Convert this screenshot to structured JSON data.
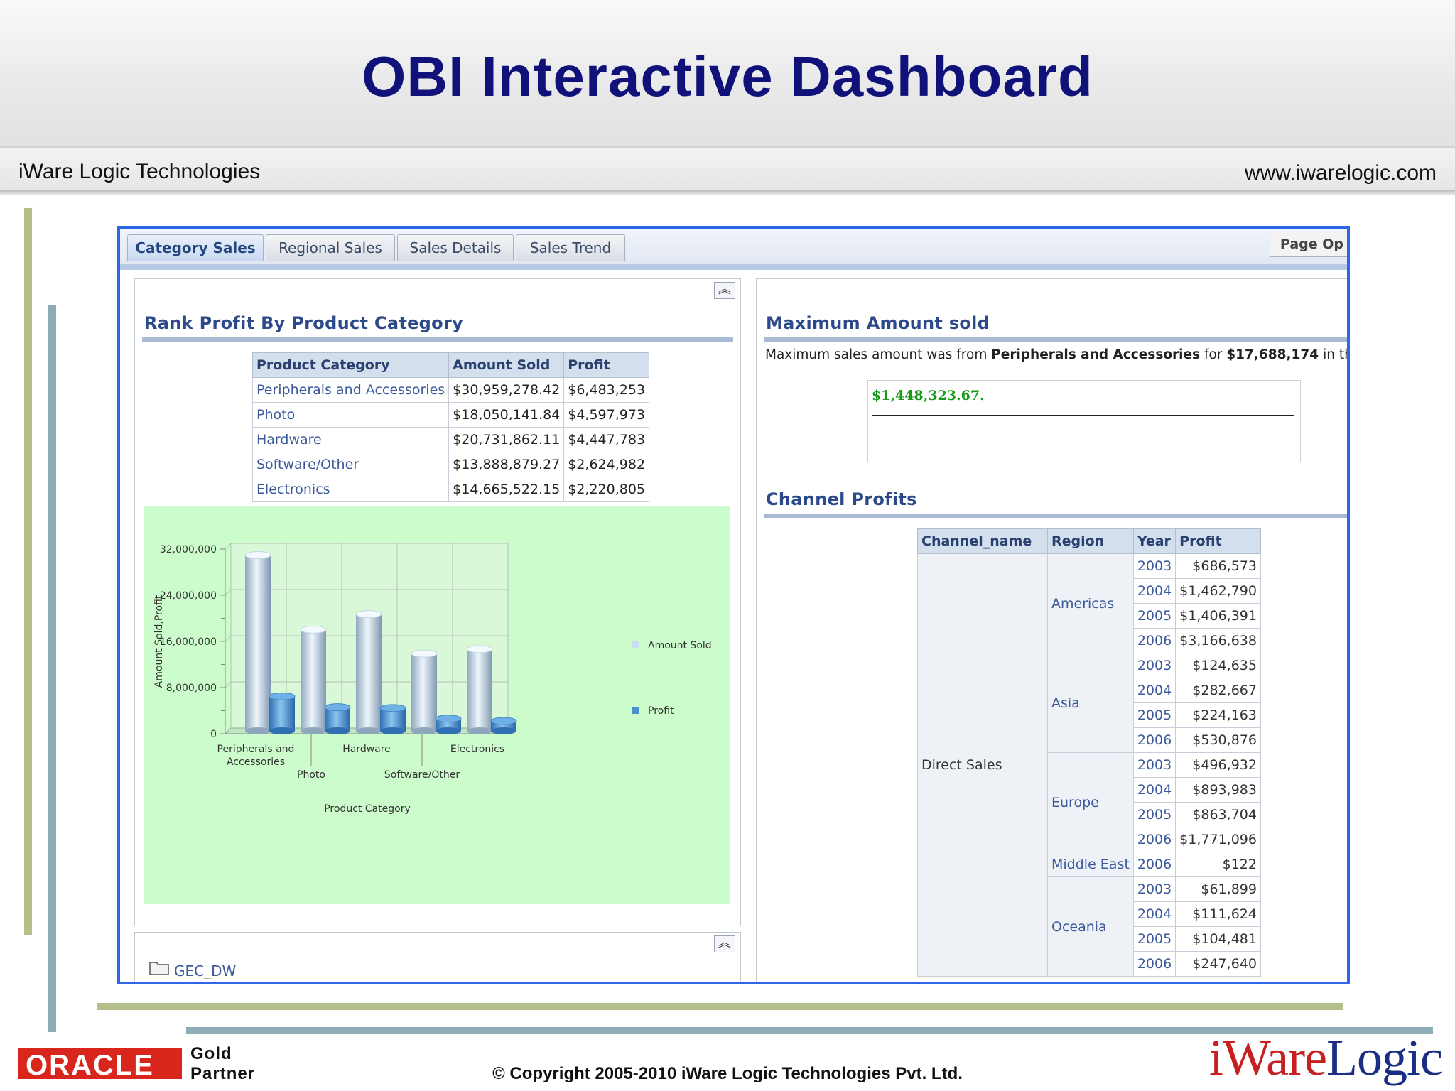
{
  "slide": {
    "title": "OBI Interactive Dashboard",
    "company": "iWare Logic Technologies",
    "website": "www.iwarelogic.com",
    "copyright": "© Copyright 2005-2010 iWare Logic Technologies Pvt. Ltd.",
    "partner_logo": "ORACLE",
    "partner_line1": "Gold",
    "partner_line2": "Partner",
    "logo_part1": "iWare",
    "logo_part2": "Logic"
  },
  "colors": {
    "title": "#10127a",
    "frame_border": "#2d66e6",
    "chart_background": "#ccfccc",
    "amount_sold_series": "#c9deee",
    "profit_series": "#4a90d0",
    "max_value": "#169a16",
    "oracle_red": "#d9261c"
  },
  "tabs": [
    {
      "label": "Category Sales",
      "active": true
    },
    {
      "label": "Regional Sales",
      "active": false
    },
    {
      "label": "Sales Details",
      "active": false
    },
    {
      "label": "Sales Trend",
      "active": false
    }
  ],
  "page_options_label": "Page Op",
  "rank_section": {
    "title": "Rank Profit By Product Category",
    "columns": [
      "Product Category",
      "Amount Sold",
      "Profit"
    ],
    "rows": [
      [
        "Peripherals and Accessories",
        "$30,959,278.42",
        "$6,483,253"
      ],
      [
        "Photo",
        "$18,050,141.84",
        "$4,597,973"
      ],
      [
        "Hardware",
        "$20,731,862.11",
        "$4,447,783"
      ],
      [
        "Software/Other",
        "$13,888,879.27",
        "$2,624,982"
      ],
      [
        "Electronics",
        "$14,665,522.15",
        "$2,220,805"
      ]
    ]
  },
  "chart_data": {
    "type": "bar",
    "categories": [
      "Peripherals and Accessories",
      "Photo",
      "Hardware",
      "Software/Other",
      "Electronics"
    ],
    "category_labels": [
      [
        "Peripherals and",
        "Accessories"
      ],
      [
        "Photo"
      ],
      [
        "Hardware"
      ],
      [
        "Software/Other"
      ],
      [
        "Electronics"
      ]
    ],
    "series": [
      {
        "name": "Amount Sold",
        "values": [
          30959278.42,
          18050141.84,
          20731862.11,
          13888879.27,
          14665522.15
        ]
      },
      {
        "name": "Profit",
        "values": [
          6483253,
          4597973,
          4447783,
          2624982,
          2220805
        ]
      }
    ],
    "xlabel": "Product Category",
    "ylabel": "Amount Sold,Profit",
    "ylim": [
      0,
      32000000
    ],
    "yticks": [
      0,
      8000000,
      16000000,
      24000000,
      32000000
    ],
    "ytick_labels": [
      "0",
      "8,000,000",
      "16,000,000",
      "24,000,000",
      "32,000,000"
    ],
    "legend_position": "right",
    "grid": true
  },
  "folder": {
    "label": "GEC_DW"
  },
  "max_section": {
    "title": "Maximum Amount sold",
    "text_prefix": "Maximum sales amount was from ",
    "text_category": "Peripherals and Accessories",
    "text_mid": " for ",
    "text_amount": "$17,688,174",
    "text_suffix": " in the ye",
    "box_value": "$1,448,323.67."
  },
  "channel_section": {
    "title": "Channel Profits",
    "columns": [
      "Channel_name",
      "Region",
      "Year",
      "Profit"
    ],
    "channel": "Direct Sales",
    "regions": [
      {
        "name": "Americas",
        "rows": [
          [
            "2003",
            "$686,573"
          ],
          [
            "2004",
            "$1,462,790"
          ],
          [
            "2005",
            "$1,406,391"
          ],
          [
            "2006",
            "$3,166,638"
          ]
        ]
      },
      {
        "name": "Asia",
        "rows": [
          [
            "2003",
            "$124,635"
          ],
          [
            "2004",
            "$282,667"
          ],
          [
            "2005",
            "$224,163"
          ],
          [
            "2006",
            "$530,876"
          ]
        ]
      },
      {
        "name": "Europe",
        "rows": [
          [
            "2003",
            "$496,932"
          ],
          [
            "2004",
            "$893,983"
          ],
          [
            "2005",
            "$863,704"
          ],
          [
            "2006",
            "$1,771,096"
          ]
        ]
      },
      {
        "name": "Middle East",
        "rows": [
          [
            "2006",
            "$122"
          ]
        ]
      },
      {
        "name": "Oceania",
        "rows": [
          [
            "2003",
            "$61,899"
          ],
          [
            "2004",
            "$111,624"
          ],
          [
            "2005",
            "$104,481"
          ],
          [
            "2006",
            "$247,640"
          ]
        ]
      }
    ]
  }
}
